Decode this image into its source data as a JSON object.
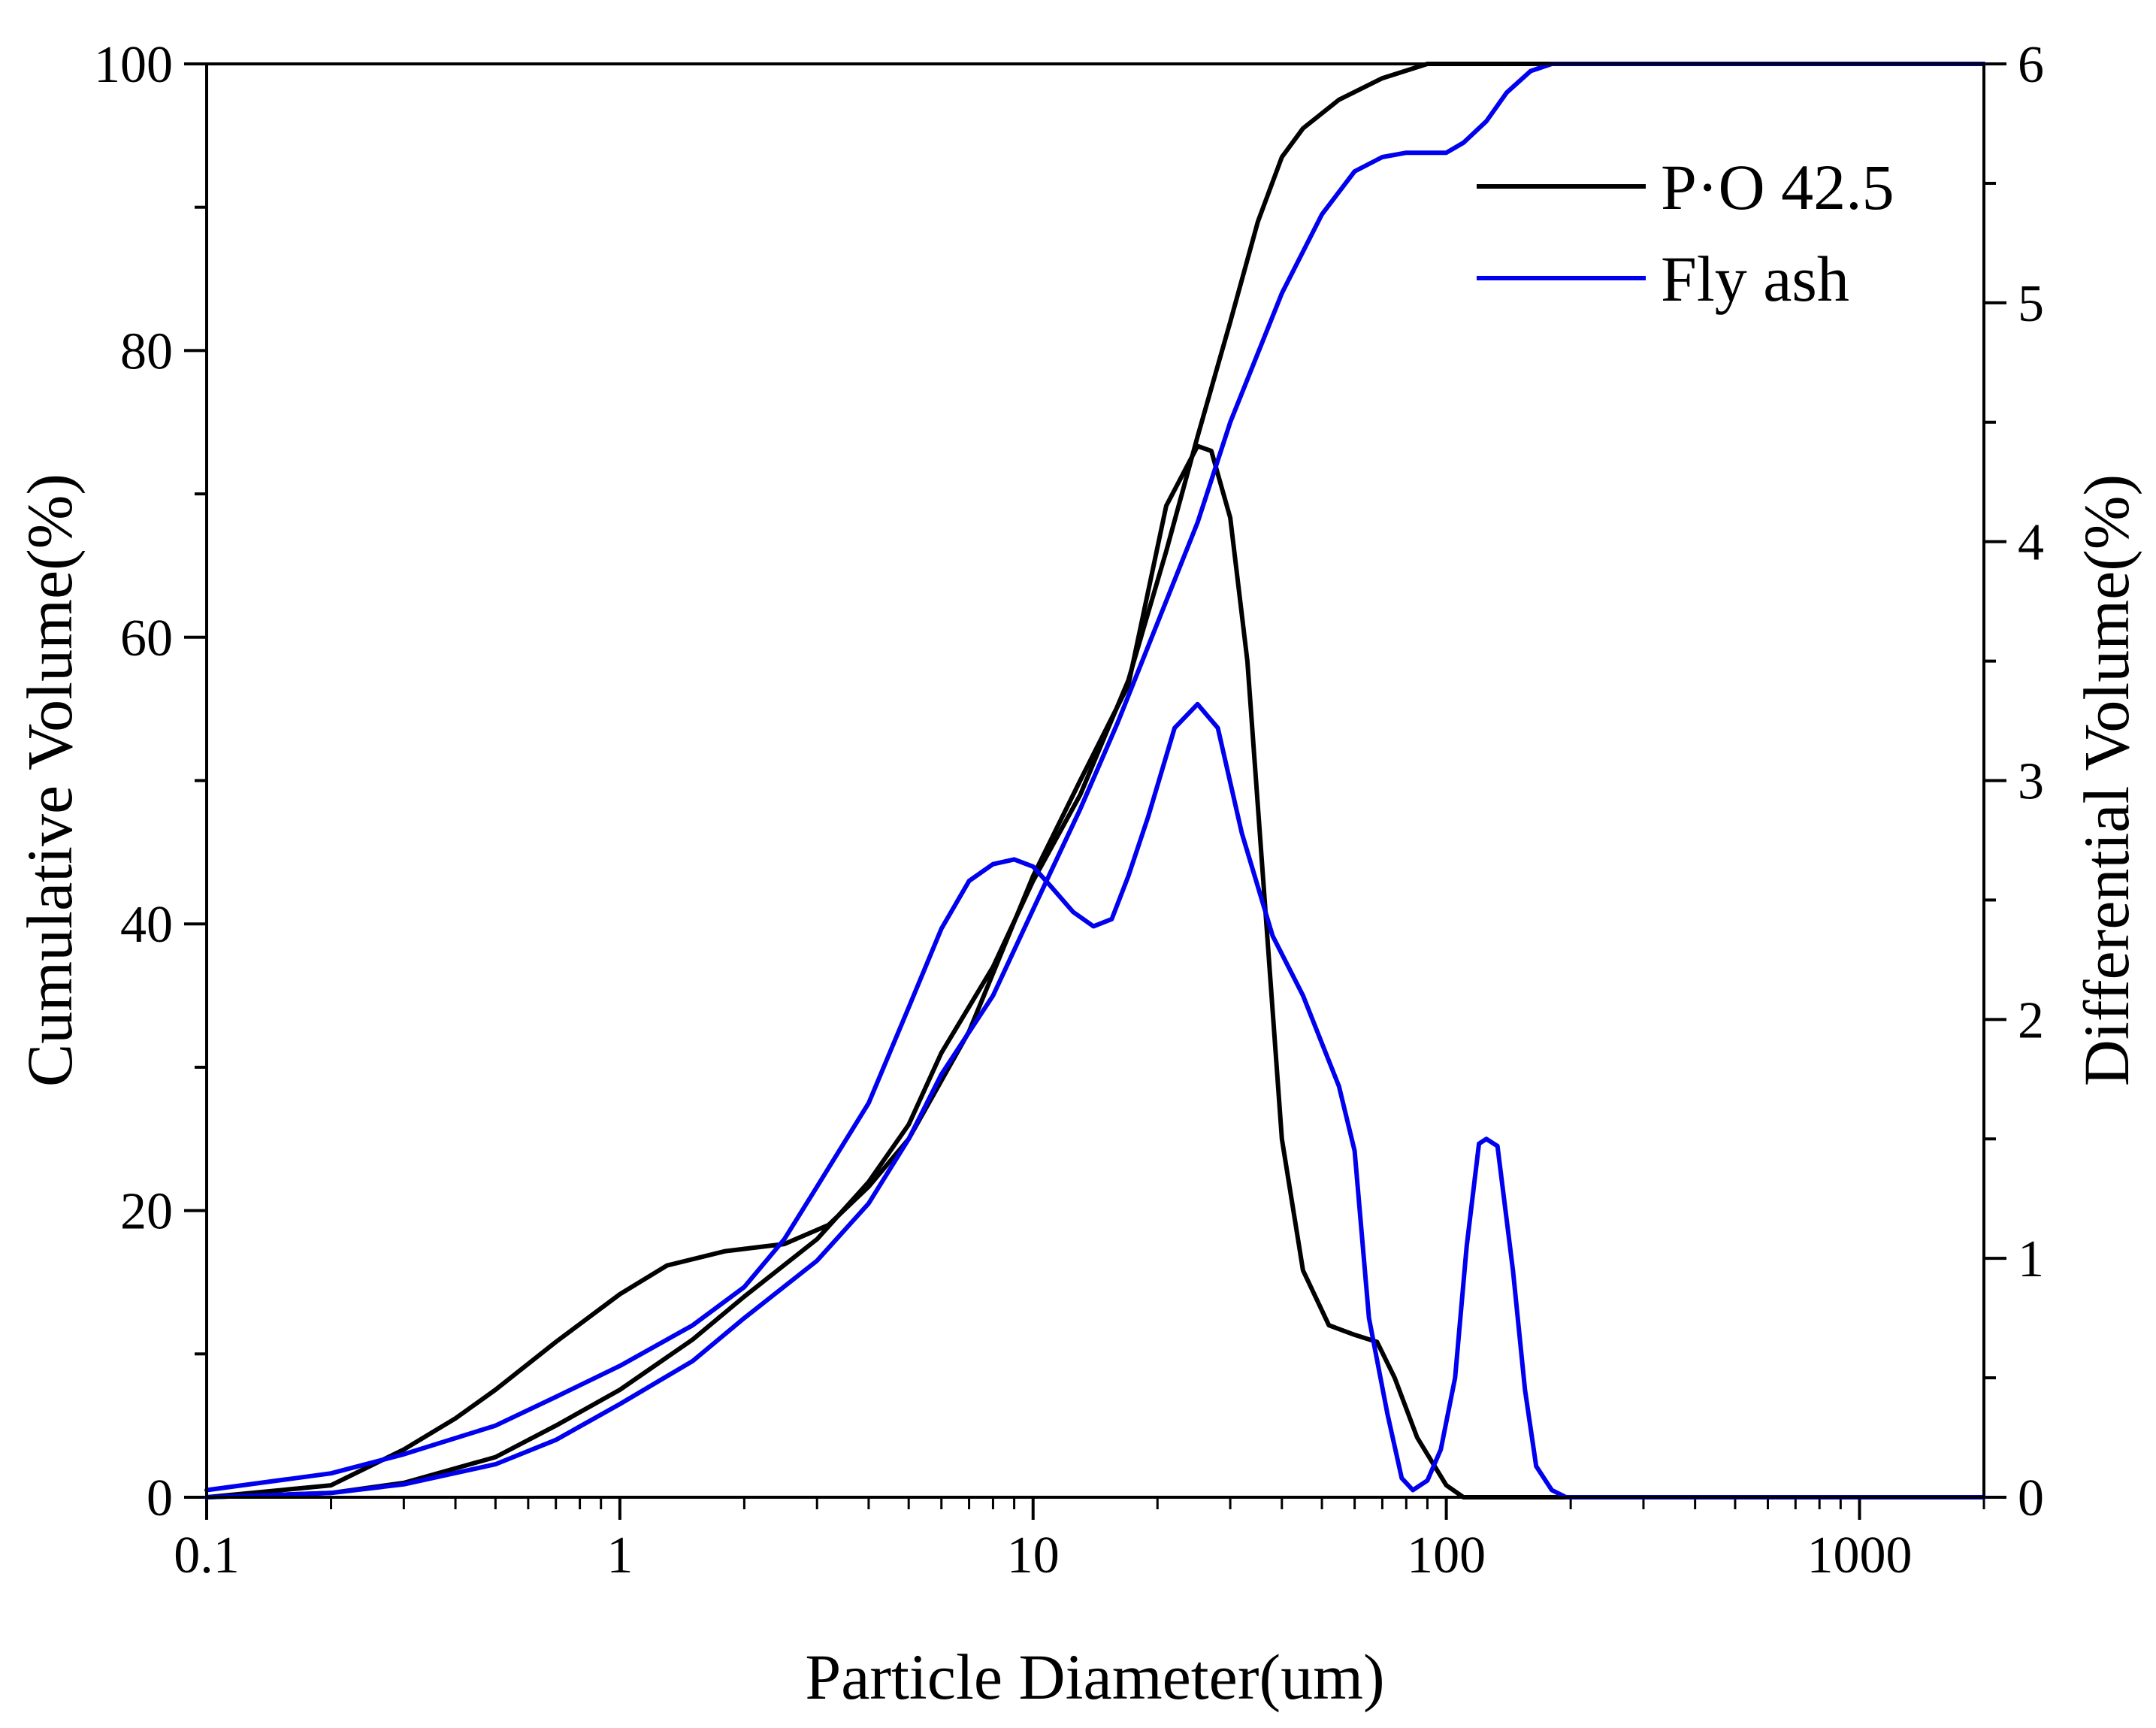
{
  "chart_data": {
    "type": "line",
    "title": "",
    "xlabel": "Particle Diameter(um)",
    "ylabel_left": "Cumulative Volume(%)",
    "ylabel_right": "Differential Volume(%)",
    "x_scale": "log",
    "xlim": [
      0.1,
      2000
    ],
    "ylim_left": [
      0,
      100
    ],
    "ylim_right": [
      0,
      6
    ],
    "x_ticks": [
      0.1,
      1,
      10,
      100,
      1000
    ],
    "x_tick_labels": [
      "0.1",
      "1",
      "10",
      "100",
      "1000"
    ],
    "y_left_ticks": [
      0,
      20,
      40,
      60,
      80,
      100
    ],
    "y_left_tick_labels": [
      "0",
      "20",
      "40",
      "60",
      "80",
      "100"
    ],
    "y_right_ticks": [
      0,
      1,
      2,
      3,
      4,
      5,
      6
    ],
    "y_right_tick_labels": [
      "0",
      "1",
      "2",
      "3",
      "4",
      "5",
      "6"
    ],
    "legend_position": "top-right",
    "colors": {
      "po": "#000000",
      "fly": "#0000ee"
    },
    "series": [
      {
        "name": "P·O 42.5",
        "color": "#000000",
        "axis": "left",
        "kind": "cumulative",
        "points": [
          [
            0.1,
            0
          ],
          [
            0.2,
            0.3
          ],
          [
            0.3,
            1.0
          ],
          [
            0.5,
            2.8
          ],
          [
            0.7,
            5.0
          ],
          [
            1,
            7.5
          ],
          [
            1.5,
            11
          ],
          [
            2,
            14
          ],
          [
            3,
            18
          ],
          [
            4,
            22
          ],
          [
            5,
            26
          ],
          [
            6,
            31
          ],
          [
            8,
            37
          ],
          [
            10,
            43
          ],
          [
            13,
            49
          ],
          [
            17,
            57
          ],
          [
            21,
            66
          ],
          [
            25,
            74
          ],
          [
            30,
            82
          ],
          [
            35,
            89
          ],
          [
            40,
            93.5
          ],
          [
            45,
            95.5
          ],
          [
            55,
            97.5
          ],
          [
            70,
            99
          ],
          [
            90,
            100
          ],
          [
            120,
            100
          ],
          [
            2000,
            100
          ]
        ]
      },
      {
        "name": "P·O 42.5",
        "color": "#000000",
        "axis": "right",
        "kind": "differential",
        "points": [
          [
            0.1,
            0
          ],
          [
            0.2,
            0.05
          ],
          [
            0.3,
            0.2
          ],
          [
            0.4,
            0.33
          ],
          [
            0.5,
            0.45
          ],
          [
            0.7,
            0.65
          ],
          [
            1,
            0.85
          ],
          [
            1.3,
            0.97
          ],
          [
            1.8,
            1.03
          ],
          [
            2.5,
            1.06
          ],
          [
            3.2,
            1.14
          ],
          [
            4,
            1.3
          ],
          [
            5,
            1.5
          ],
          [
            7,
            1.95
          ],
          [
            10,
            2.6
          ],
          [
            13,
            3.0
          ],
          [
            17,
            3.4
          ],
          [
            21,
            4.15
          ],
          [
            25,
            4.4
          ],
          [
            27,
            4.38
          ],
          [
            30,
            4.1
          ],
          [
            33,
            3.5
          ],
          [
            36,
            2.6
          ],
          [
            40,
            1.5
          ],
          [
            45,
            0.95
          ],
          [
            52,
            0.72
          ],
          [
            60,
            0.68
          ],
          [
            68,
            0.65
          ],
          [
            75,
            0.5
          ],
          [
            85,
            0.25
          ],
          [
            100,
            0.05
          ],
          [
            110,
            0
          ],
          [
            2000,
            0
          ]
        ]
      },
      {
        "name": "Fly ash",
        "color": "#0000ee",
        "axis": "left",
        "kind": "cumulative",
        "points": [
          [
            0.1,
            0
          ],
          [
            0.2,
            0.3
          ],
          [
            0.3,
            0.9
          ],
          [
            0.5,
            2.3
          ],
          [
            0.7,
            4.0
          ],
          [
            1,
            6.5
          ],
          [
            1.5,
            9.5
          ],
          [
            2,
            12.5
          ],
          [
            3,
            16.5
          ],
          [
            4,
            20.5
          ],
          [
            5,
            25
          ],
          [
            6,
            29.5
          ],
          [
            8,
            35
          ],
          [
            10,
            41
          ],
          [
            13,
            48
          ],
          [
            16,
            54
          ],
          [
            20,
            61
          ],
          [
            25,
            68
          ],
          [
            30,
            75
          ],
          [
            40,
            84
          ],
          [
            50,
            89.5
          ],
          [
            60,
            92.5
          ],
          [
            70,
            93.5
          ],
          [
            80,
            93.8
          ],
          [
            100,
            93.8
          ],
          [
            110,
            94.5
          ],
          [
            125,
            96
          ],
          [
            140,
            98
          ],
          [
            160,
            99.5
          ],
          [
            180,
            100
          ],
          [
            2000,
            100
          ]
        ]
      },
      {
        "name": "Fly ash",
        "color": "#0000ee",
        "axis": "right",
        "kind": "differential",
        "points": [
          [
            0.1,
            0.03
          ],
          [
            0.2,
            0.1
          ],
          [
            0.3,
            0.18
          ],
          [
            0.5,
            0.3
          ],
          [
            0.7,
            0.42
          ],
          [
            1,
            0.55
          ],
          [
            1.5,
            0.72
          ],
          [
            2,
            0.88
          ],
          [
            2.5,
            1.08
          ],
          [
            3,
            1.3
          ],
          [
            4,
            1.65
          ],
          [
            5,
            2.05
          ],
          [
            6,
            2.38
          ],
          [
            7,
            2.58
          ],
          [
            8,
            2.65
          ],
          [
            9,
            2.67
          ],
          [
            10,
            2.64
          ],
          [
            11,
            2.56
          ],
          [
            12.5,
            2.45
          ],
          [
            14,
            2.39
          ],
          [
            15.5,
            2.42
          ],
          [
            17,
            2.6
          ],
          [
            19,
            2.85
          ],
          [
            22,
            3.22
          ],
          [
            25,
            3.32
          ],
          [
            28,
            3.22
          ],
          [
            32,
            2.78
          ],
          [
            38,
            2.35
          ],
          [
            45,
            2.1
          ],
          [
            50,
            1.9
          ],
          [
            55,
            1.72
          ],
          [
            60,
            1.45
          ],
          [
            65,
            0.75
          ],
          [
            72,
            0.35
          ],
          [
            78,
            0.08
          ],
          [
            83,
            0.03
          ],
          [
            90,
            0.07
          ],
          [
            97,
            0.2
          ],
          [
            105,
            0.5
          ],
          [
            112,
            1.05
          ],
          [
            120,
            1.48
          ],
          [
            125,
            1.5
          ],
          [
            133,
            1.47
          ],
          [
            145,
            0.95
          ],
          [
            155,
            0.45
          ],
          [
            165,
            0.13
          ],
          [
            180,
            0.03
          ],
          [
            195,
            0
          ],
          [
            2000,
            0
          ]
        ]
      }
    ]
  }
}
